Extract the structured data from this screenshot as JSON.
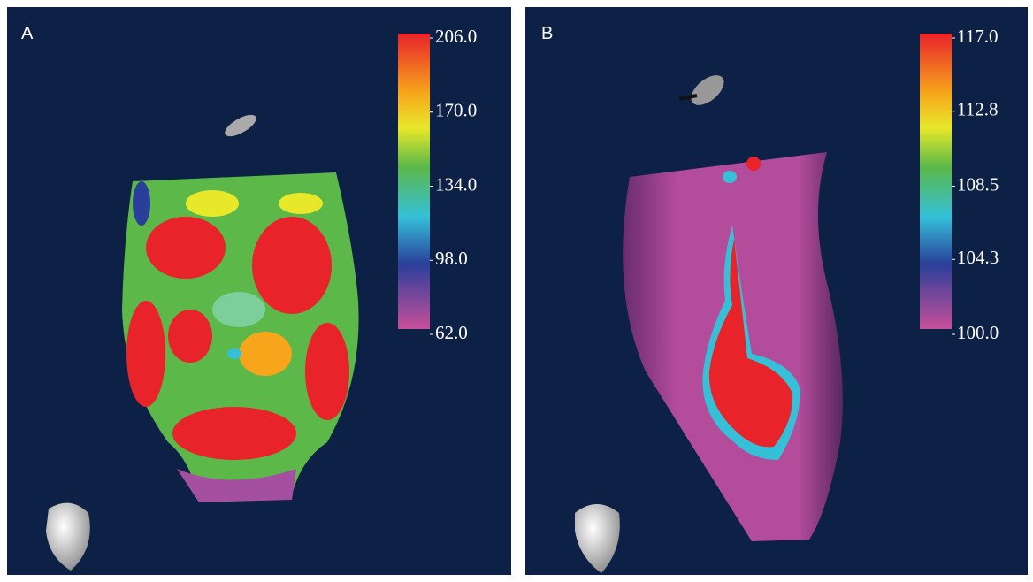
{
  "panels": [
    {
      "label": "A",
      "colorbar": {
        "min": 62,
        "max": 206,
        "ticks": [
          {
            "value": 206,
            "label": "206.0"
          },
          {
            "value": 170,
            "label": "170.0"
          },
          {
            "value": 134,
            "label": "134.0"
          },
          {
            "value": 98,
            "label": "98.0"
          },
          {
            "value": 62,
            "label": "62.0"
          }
        ]
      }
    },
    {
      "label": "B",
      "colorbar": {
        "min": 100,
        "max": 117,
        "ticks": [
          {
            "value": 117,
            "label": "117.0"
          },
          {
            "value": 112.8,
            "label": "112.8"
          },
          {
            "value": 108.5,
            "label": "108.5"
          },
          {
            "value": 104.3,
            "label": "104.3"
          },
          {
            "value": 100,
            "label": "100.0"
          }
        ]
      }
    }
  ]
}
